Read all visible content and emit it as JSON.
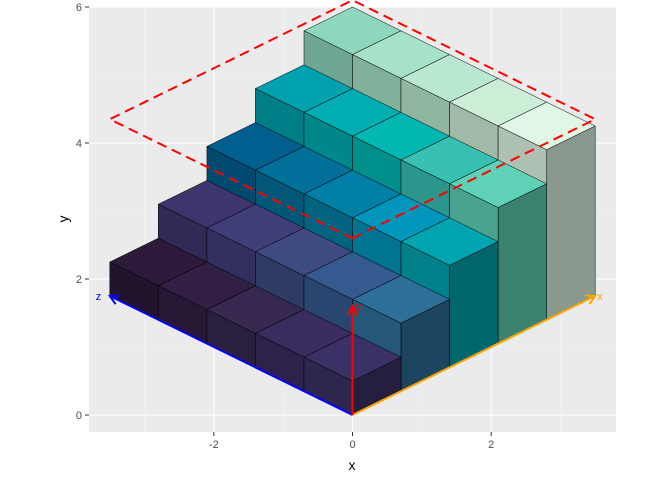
{
  "chart_data": {
    "type": "3d-bar",
    "xlabel": "x",
    "ylabel": "y",
    "xlim": [
      -3.8,
      3.8
    ],
    "ylim": [
      -0.25,
      6.0
    ],
    "x_ticks": [
      -2,
      0,
      2
    ],
    "y_ticks": [
      0,
      2,
      4,
      6
    ],
    "grid": true,
    "projection": {
      "origin": [
        0,
        0
      ],
      "x_axis_dir": [
        0.7,
        0.35
      ],
      "z_axis_dir": [
        -0.7,
        0.35
      ],
      "y_axis_dir": [
        0,
        1
      ]
    },
    "bars": [
      {
        "row": 0,
        "heights": [
          0.5,
          1.0,
          1.5,
          2.0,
          2.5
        ],
        "colors": [
          "#3c3166",
          "#2e6f9a",
          "#00a5b0",
          "#5fd1b7",
          "#dff7e4"
        ]
      },
      {
        "row": 1,
        "heights": [
          0.5,
          1.0,
          1.5,
          2.0,
          2.5
        ],
        "colors": [
          "#3a2c5e",
          "#355a8f",
          "#0095ba",
          "#38c0b3",
          "#cdeed6"
        ]
      },
      {
        "row": 2,
        "heights": [
          0.5,
          1.0,
          1.5,
          2.0,
          2.5
        ],
        "colors": [
          "#36284f",
          "#3d4b82",
          "#0080a6",
          "#00b7b1",
          "#b8e8cf"
        ]
      },
      {
        "row": 3,
        "heights": [
          0.5,
          1.0,
          1.5,
          2.0,
          2.5
        ],
        "colors": [
          "#321f45",
          "#403e78",
          "#006f9a",
          "#00adb0",
          "#a6e2c7"
        ]
      },
      {
        "row": 4,
        "heights": [
          0.5,
          1.0,
          1.5,
          2.0,
          2.5
        ],
        "colors": [
          "#2c1a3a",
          "#3f356e",
          "#005f8e",
          "#00a2ad",
          "#8fd6be"
        ]
      }
    ],
    "axis_arrows": [
      {
        "name": "x",
        "label": "x",
        "color": "#ffa500"
      },
      {
        "name": "y",
        "label": "y",
        "color": "#ff0000"
      },
      {
        "name": "z",
        "label": "z",
        "color": "#0000ff"
      }
    ],
    "bounding_outline": {
      "color": "#ff0000",
      "style": "dashed"
    }
  }
}
